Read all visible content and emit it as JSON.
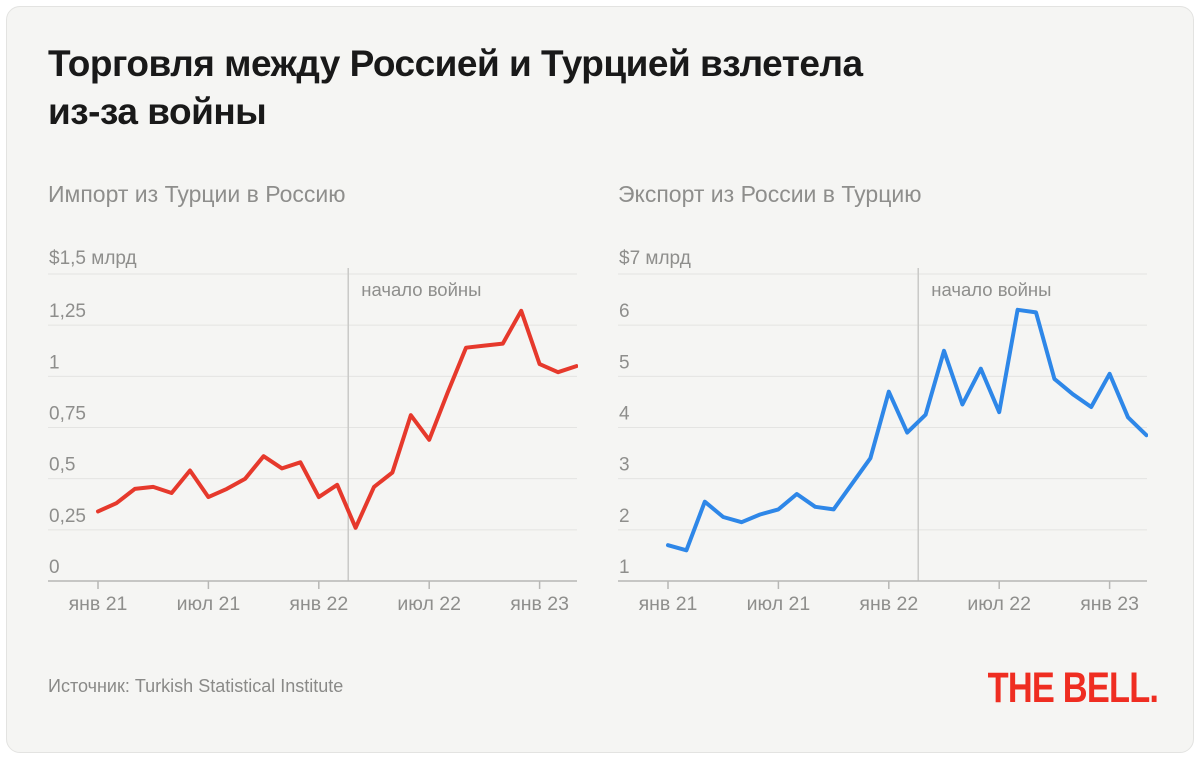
{
  "card": {
    "title_line1": "Торговля между Россией и Турцией взлетела",
    "title_line2": "из-за войны",
    "source": "Источник: Turkish Statistical Institute",
    "logo": "THE BELL."
  },
  "colors": {
    "card_bg": "#f5f5f3",
    "grid": "#e4e4e2",
    "axis": "#b7b7b5",
    "war_line": "#c9c9c7",
    "text_gray": "#8e8e8c",
    "title_color": "#191919",
    "red": "#e6392c",
    "blue": "#2e87e8",
    "logo_red": "#ef2d21"
  },
  "chart_data": [
    {
      "type": "line",
      "title": "Импорт из Турции в Россию",
      "unit_label": "$1,5 млрд",
      "color_key": "red",
      "x_unit": "month",
      "x_range": [
        "янв 2021",
        "мар 2023"
      ],
      "ylim": [
        0,
        1.5
      ],
      "grid": true,
      "y_ticks": [
        {
          "value": 1.25,
          "label": "1,25"
        },
        {
          "value": 1.0,
          "label": "1"
        },
        {
          "value": 0.75,
          "label": "0,75"
        },
        {
          "value": 0.5,
          "label": "0,5"
        },
        {
          "value": 0.25,
          "label": "0,25"
        },
        {
          "value": 0,
          "label": "0"
        }
      ],
      "x_ticks": [
        {
          "index": 0,
          "label": "янв 21"
        },
        {
          "index": 6,
          "label": "июл 21"
        },
        {
          "index": 12,
          "label": "янв 22"
        },
        {
          "index": 18,
          "label": "июл 22"
        },
        {
          "index": 24,
          "label": "янв 23"
        }
      ],
      "annotation": {
        "label": "начало войны",
        "month_index": 13.6
      },
      "values": [
        0.34,
        0.38,
        0.45,
        0.46,
        0.43,
        0.54,
        0.41,
        0.45,
        0.5,
        0.61,
        0.55,
        0.58,
        0.41,
        0.47,
        0.26,
        0.46,
        0.53,
        0.81,
        0.69,
        0.92,
        1.14,
        1.15,
        1.16,
        1.32,
        1.06,
        1.02,
        1.05
      ]
    },
    {
      "type": "line",
      "title": "Экспорт из России в Турцию",
      "unit_label": "$7 млрд",
      "color_key": "blue",
      "x_unit": "month",
      "x_range": [
        "янв 2021",
        "мар 2023"
      ],
      "ylim": [
        1,
        7
      ],
      "grid": true,
      "y_ticks": [
        {
          "value": 6,
          "label": "6"
        },
        {
          "value": 5,
          "label": "5"
        },
        {
          "value": 4,
          "label": "4"
        },
        {
          "value": 3,
          "label": "3"
        },
        {
          "value": 2,
          "label": "2"
        },
        {
          "value": 1,
          "label": "1"
        }
      ],
      "x_ticks": [
        {
          "index": 0,
          "label": "янв 21"
        },
        {
          "index": 6,
          "label": "июл 21"
        },
        {
          "index": 12,
          "label": "янв 22"
        },
        {
          "index": 18,
          "label": "июл 22"
        },
        {
          "index": 24,
          "label": "янв 23"
        }
      ],
      "annotation": {
        "label": "начало войны",
        "month_index": 13.6
      },
      "values": [
        1.7,
        1.6,
        2.55,
        2.25,
        2.15,
        2.3,
        2.4,
        2.7,
        2.45,
        2.4,
        2.9,
        3.4,
        4.7,
        3.9,
        4.25,
        5.5,
        4.45,
        5.15,
        4.3,
        6.3,
        6.25,
        4.95,
        4.65,
        4.4,
        5.05,
        4.2,
        3.85
      ]
    }
  ]
}
